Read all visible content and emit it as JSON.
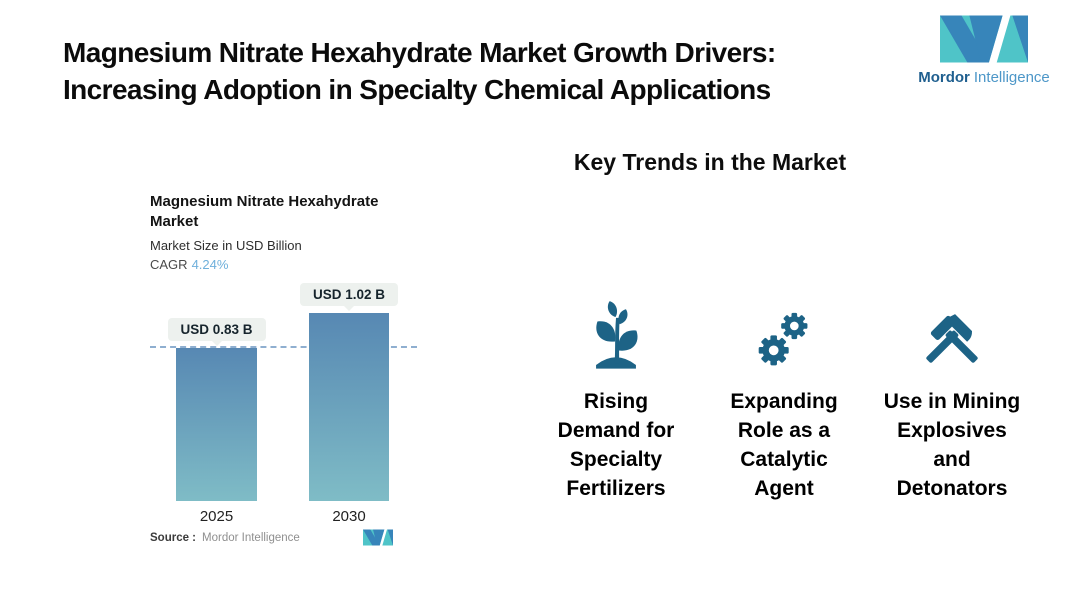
{
  "header": {
    "title_line1": "Magnesium Nitrate Hexahydrate Market Growth Drivers:",
    "title_line2": "Increasing Adoption in Specialty Chemical Applications"
  },
  "brand": {
    "name_primary": "Mordor",
    "name_secondary": "Intelligence"
  },
  "chart": {
    "title_line1": "Magnesium Nitrate Hexahydrate",
    "title_line2": "Market",
    "subtitle": "Market Size in USD Billion",
    "cagr_label": "CAGR",
    "cagr_value": "4.24%",
    "bars": [
      {
        "year": "2025",
        "label": "USD 0.83 B"
      },
      {
        "year": "2030",
        "label": "USD 1.02 B"
      }
    ],
    "source_label": "Source :",
    "source_value": "Mordor Intelligence"
  },
  "chart_data": {
    "type": "bar",
    "title": "Magnesium Nitrate Hexahydrate Market",
    "subtitle": "Market Size in USD Billion",
    "unit": "USD Billion",
    "cagr_percent": 4.24,
    "categories": [
      "2025",
      "2030"
    ],
    "values": [
      0.83,
      1.02
    ],
    "data_labels": [
      "USD 0.83 B",
      "USD 1.02 B"
    ],
    "reference_line": 0.83,
    "ylim": [
      0,
      1.15
    ],
    "grid": false,
    "legend": false
  },
  "trends": {
    "heading": "Key Trends in the Market",
    "items": [
      {
        "icon": "seedling-icon",
        "lines": [
          "Rising",
          "Demand for",
          "Specialty",
          "Fertilizers"
        ]
      },
      {
        "icon": "gears-icon",
        "lines": [
          "Expanding",
          "Role as a",
          "Catalytic",
          "Agent"
        ]
      },
      {
        "icon": "crossed-hammers-icon",
        "lines": [
          "Use in Mining",
          "Explosives",
          "and",
          "Detonators"
        ]
      }
    ]
  },
  "colors": {
    "brand_teal": "#4FC4C8",
    "brand_blue": "#3785BA",
    "brand_navy_text": "#1F5F8F",
    "brand_lightblue_text": "#4D97C8",
    "bar_gradient_top": "#5788B3",
    "bar_gradient_bottom": "#7FBCC6",
    "icon_color": "#1D6386",
    "cagr_value_color": "#6FB0DB",
    "reference_line_color": "#8FAFD0",
    "value_pill_bg": "#EDF1EE"
  }
}
